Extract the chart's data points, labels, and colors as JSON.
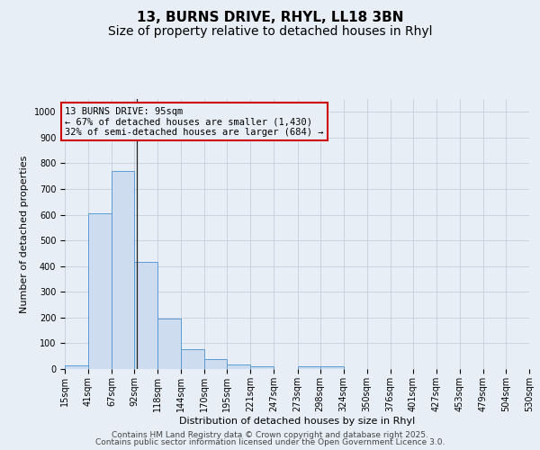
{
  "title_line1": "13, BURNS DRIVE, RHYL, LL18 3BN",
  "title_line2": "Size of property relative to detached houses in Rhyl",
  "xlabel": "Distribution of detached houses by size in Rhyl",
  "ylabel": "Number of detached properties",
  "bin_edges": [
    15,
    41,
    67,
    92,
    118,
    144,
    170,
    195,
    221,
    247,
    273,
    298,
    324,
    350,
    376,
    401,
    427,
    453,
    479,
    504,
    530
  ],
  "bar_heights": [
    15,
    605,
    770,
    415,
    195,
    78,
    38,
    18,
    12,
    0,
    12,
    10,
    0,
    0,
    0,
    0,
    0,
    0,
    0,
    0
  ],
  "bar_color": "#cddcee",
  "bar_edge_color": "#5b9bd5",
  "grid_color": "#c0c8d8",
  "background_color": "#e8eef5",
  "property_line_x": 95,
  "property_line_color": "#222222",
  "annotation_text": "13 BURNS DRIVE: 95sqm\n← 67% of detached houses are smaller (1,430)\n32% of semi-detached houses are larger (684) →",
  "annotation_box_color": "#cc0000",
  "ylim": [
    0,
    1050
  ],
  "yticks": [
    0,
    100,
    200,
    300,
    400,
    500,
    600,
    700,
    800,
    900,
    1000
  ],
  "footer_line1": "Contains HM Land Registry data © Crown copyright and database right 2025.",
  "footer_line2": "Contains public sector information licensed under the Open Government Licence 3.0.",
  "title_fontsize": 11,
  "subtitle_fontsize": 10,
  "axis_label_fontsize": 8,
  "tick_fontsize": 7,
  "annotation_fontsize": 7.5,
  "footer_fontsize": 6.5
}
